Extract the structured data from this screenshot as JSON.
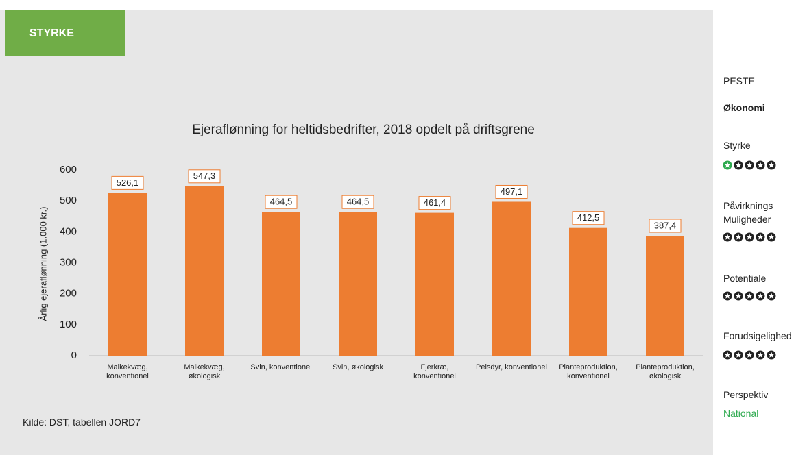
{
  "header": {
    "title": "STYRKE"
  },
  "chart_data": {
    "type": "bar",
    "title": "Ejeraflønning for heltidsbedrifter, 2018 opdelt på driftsgrene",
    "y_label": "Årlig ejeraflønning (1.000 kr.)",
    "categories": [
      "Malkekvæg, konventionel",
      "Malkekvæg, økologisk",
      "Svin, konventionel",
      "Svin, økologisk",
      "Fjerkræ, konventionel",
      "Pelsdyr, konventionel",
      "Planteproduktion, konventionel",
      "Planteproduktion, økologisk"
    ],
    "values": [
      526.1,
      547.3,
      464.5,
      464.5,
      461.4,
      497.1,
      412.5,
      387.4
    ],
    "value_labels": [
      "526,1",
      "547,3",
      "464,5",
      "464,5",
      "461,4",
      "497,1",
      "412,5",
      "387,4"
    ],
    "color": "#ed7d31",
    "ylim": [
      0,
      600
    ],
    "yticks": [
      0,
      100,
      200,
      300,
      400,
      500,
      600
    ],
    "grid": false,
    "source": "Kilde: DST, tabellen JORD7"
  },
  "sidebar": {
    "heading": "PESTE",
    "category": "Økonomi",
    "items": [
      {
        "label": "Styrke",
        "rating": 1
      },
      {
        "label": "Påvirknings Muligheder",
        "rating": 0
      },
      {
        "label": "Potentiale",
        "rating": 0
      },
      {
        "label": "Forudsigelighed",
        "rating": 0
      }
    ],
    "perspective_label": "Perspektiv",
    "perspective": "National"
  }
}
